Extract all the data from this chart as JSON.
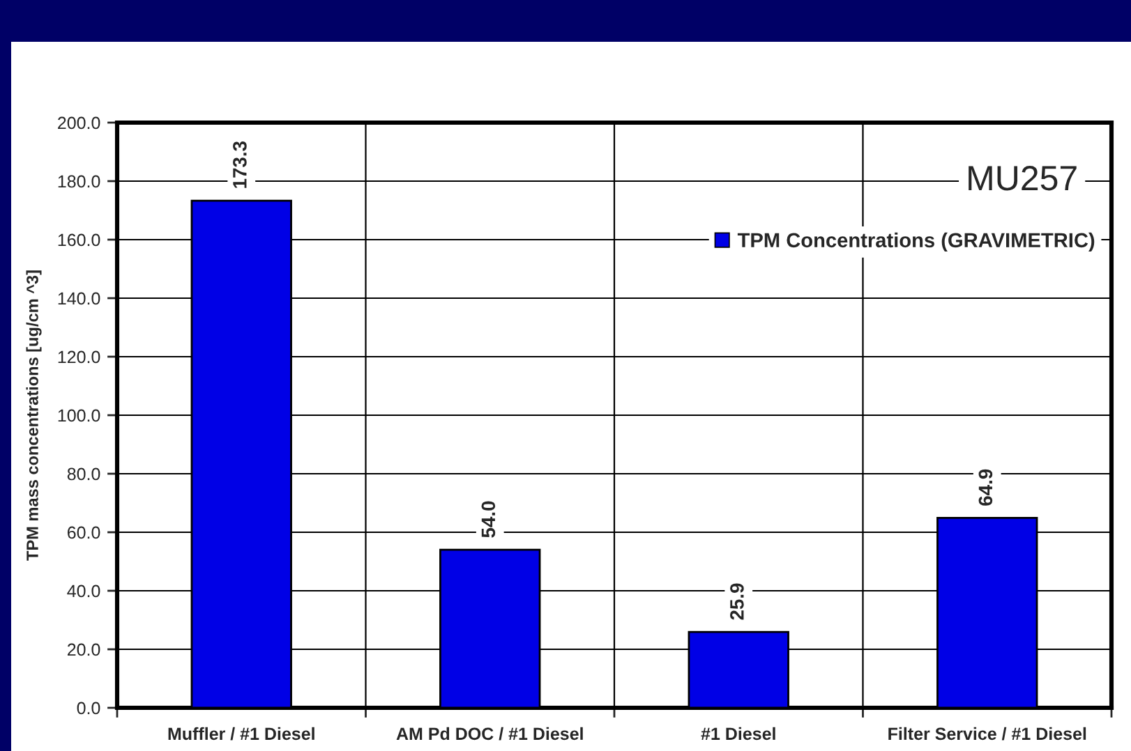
{
  "chart_data": {
    "type": "bar",
    "categories": [
      "Muffler / #1 Diesel",
      "AM Pd DOC / #1 Diesel",
      "#1 Diesel",
      "Filter Service / #1 Diesel"
    ],
    "series": [
      {
        "name": "TPM Concentrations (GRAVIMETRIC)",
        "color": "#0000e6",
        "values": [
          173.3,
          54.0,
          25.9,
          64.9
        ],
        "value_labels": [
          "173.3",
          "54.0",
          "25.9",
          "64.9"
        ]
      }
    ],
    "ylabel": "TPM mass concentrations [ug/cm ^3]",
    "ylim": [
      0,
      200
    ],
    "yticks": [
      {
        "value": 0,
        "label": "0.0"
      },
      {
        "value": 20,
        "label": "20.0"
      },
      {
        "value": 40,
        "label": "40.0"
      },
      {
        "value": 60,
        "label": "60.0"
      },
      {
        "value": 80,
        "label": "80.0"
      },
      {
        "value": 100,
        "label": "100.0"
      },
      {
        "value": 120,
        "label": "120.0"
      },
      {
        "value": 140,
        "label": "140.0"
      },
      {
        "value": 160,
        "label": "160.0"
      },
      {
        "value": 180,
        "label": "180.0"
      },
      {
        "value": 200,
        "label": "200.0"
      }
    ],
    "annotations": [
      "MU257"
    ],
    "grid": true,
    "legend": "top right"
  }
}
